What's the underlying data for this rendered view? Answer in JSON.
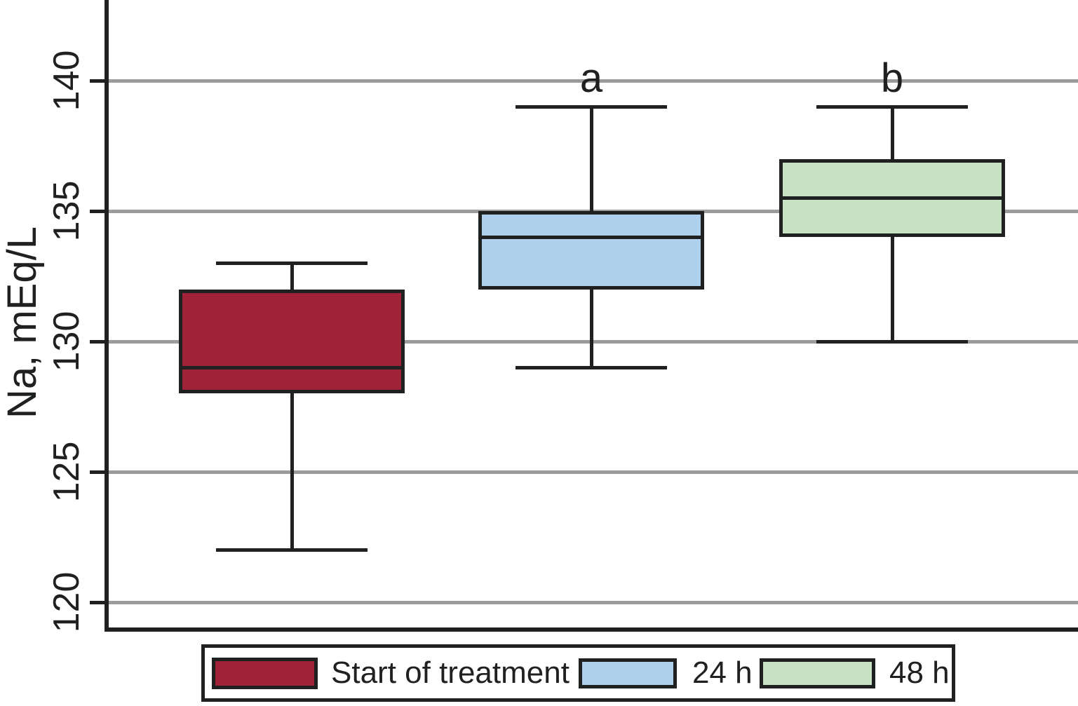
{
  "chart_data": {
    "type": "box",
    "title": "",
    "xlabel": "",
    "ylabel": "Na, mEq/L",
    "yticks": [
      140,
      135,
      130,
      125,
      120
    ],
    "ylim": [
      118.6,
      143.1
    ],
    "grid": "horizontal gray gridlines at each y tick, drawn behind boxes",
    "legend_position": "bottom, framed box",
    "line_color": "#1F2121",
    "grid_color": "#9B9B9B",
    "background_color": "#FFFFFF",
    "series": [
      {
        "name": "Start of treatment",
        "color": "#A02138",
        "min": 122,
        "q1": 128,
        "median": 129,
        "q3": 132,
        "max": 133,
        "annotation": ""
      },
      {
        "name": "24 h",
        "color": "#AFD0EC",
        "min": 129,
        "q1": 132,
        "median": 134,
        "q3": 135,
        "max": 139,
        "annotation": "a"
      },
      {
        "name": "48 h",
        "color": "#C6E2C3",
        "min": 130,
        "q1": 134,
        "median": 135.5,
        "q3": 137,
        "max": 139,
        "annotation": "b"
      }
    ]
  }
}
